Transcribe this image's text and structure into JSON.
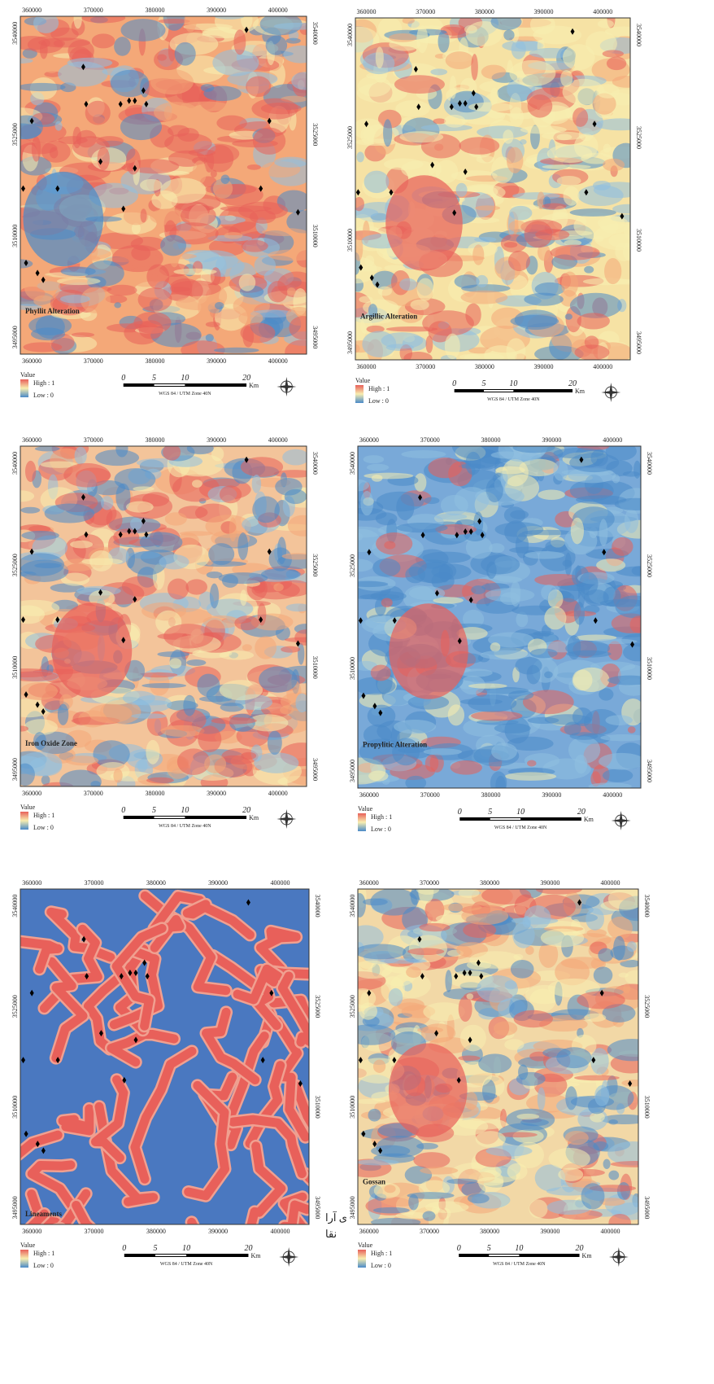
{
  "panels": [
    {
      "title": "Phyllit Alteration"
    },
    {
      "title": "Argillic Alteration"
    },
    {
      "title": "Iron Oxide Zone"
    },
    {
      "title": "Propylitic Alteration"
    },
    {
      "title": "Lineaments"
    },
    {
      "title": "Gossan"
    }
  ],
  "x_ticks": [
    "360000",
    "370000",
    "380000",
    "390000",
    "400000"
  ],
  "y_ticks": [
    "3540000",
    "3525000",
    "3510000",
    "3495000"
  ],
  "legend": {
    "heading": "Value",
    "high": "High : 1",
    "low": "Low : 0"
  },
  "scale": {
    "labels": [
      "0",
      "5",
      "10",
      "20"
    ],
    "unit": "Km",
    "datum": "WGS 84 / UTM Zone 40N"
  },
  "side_text": [
    "ی آرا",
    "نقا"
  ]
}
